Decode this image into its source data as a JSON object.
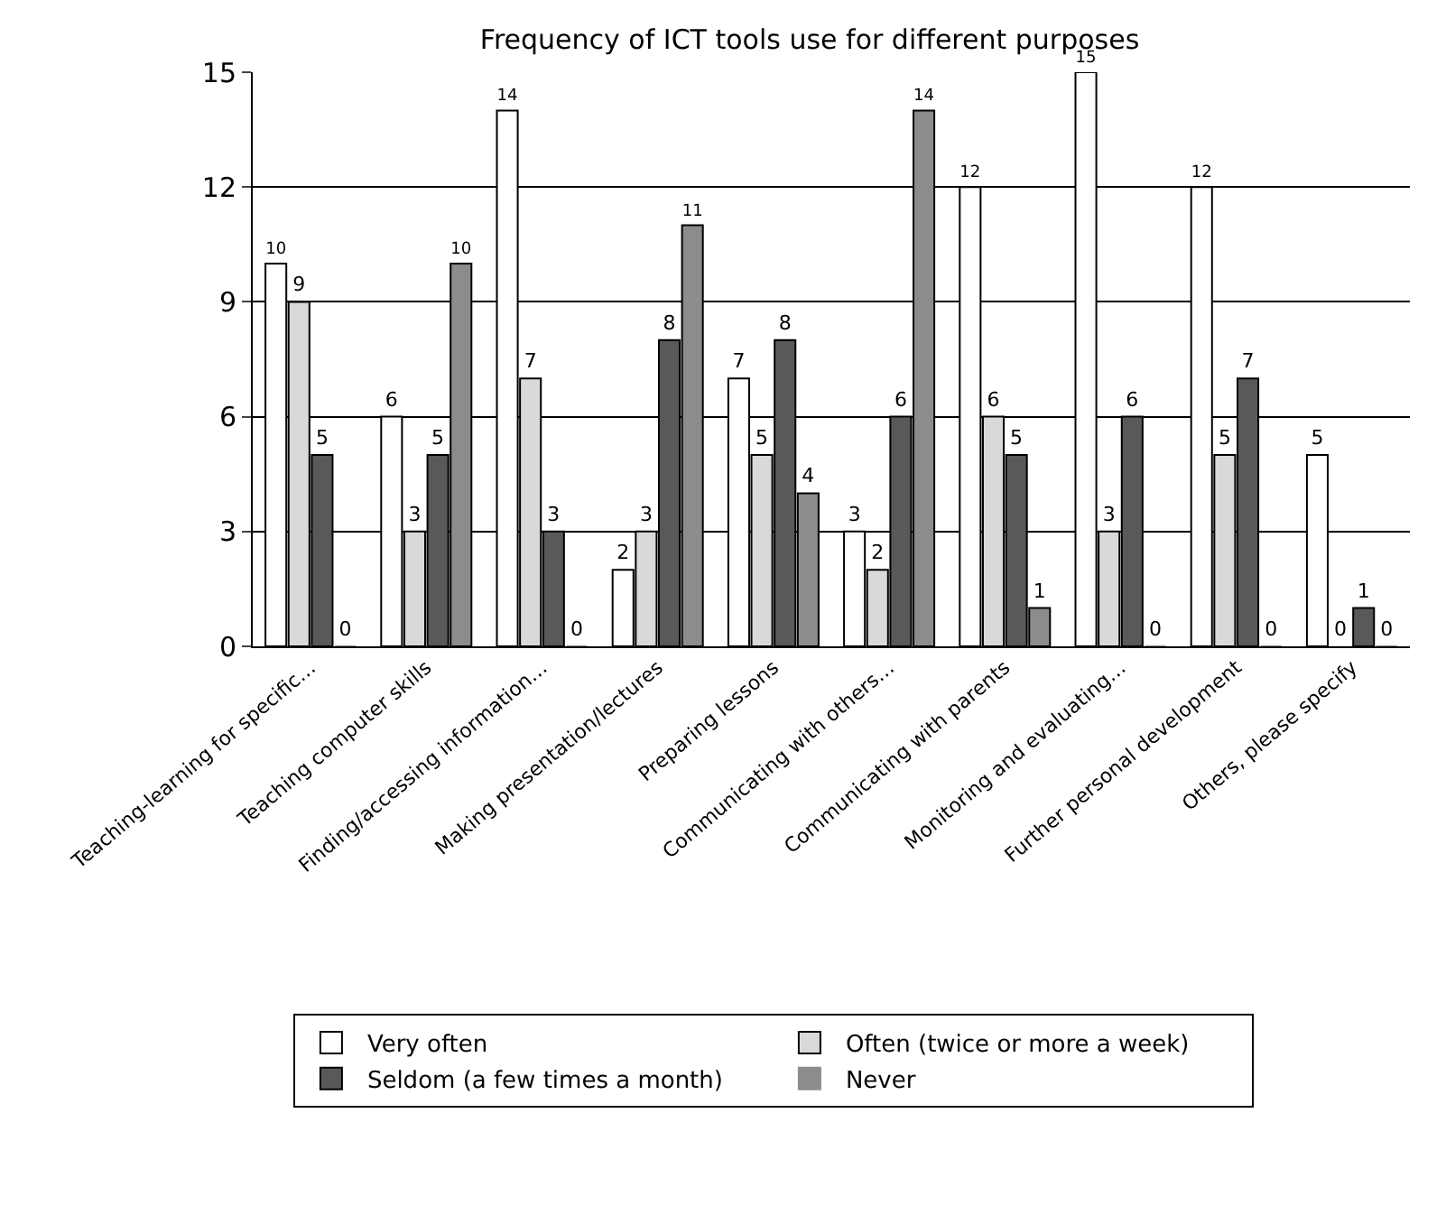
{
  "chart_data": {
    "type": "bar",
    "title": "Frequency of ICT tools use for different purposes",
    "categories": [
      "Teaching-learning for specific…",
      "Teaching computer skills",
      "Finding/accessing information…",
      "Making presentation/lectures",
      "Preparing lessons",
      "Communicating with others…",
      "Communicating with parents",
      "Monitoring and evaluating…",
      "Further personal development",
      "Others, please specify"
    ],
    "series": [
      {
        "name": "Very often",
        "color": "#ffffff",
        "values": [
          10,
          6,
          14,
          2,
          7,
          3,
          12,
          15,
          12,
          5
        ]
      },
      {
        "name": "Often (twice or more a week)",
        "color": "#d9d9d9",
        "values": [
          9,
          3,
          7,
          3,
          5,
          2,
          6,
          3,
          5,
          0
        ]
      },
      {
        "name": "Seldom (a few times a month)",
        "color": "#595959",
        "values": [
          5,
          5,
          3,
          8,
          8,
          6,
          5,
          6,
          7,
          1
        ]
      },
      {
        "name": "Never",
        "color": "#8c8c8c",
        "values": [
          0,
          10,
          0,
          11,
          4,
          14,
          1,
          0,
          0,
          0
        ]
      }
    ],
    "ylim": [
      0,
      15
    ],
    "yticks": [
      0,
      3,
      6,
      9,
      12,
      15
    ],
    "grid": "y",
    "legend": "bottom",
    "data_labels": true
  }
}
